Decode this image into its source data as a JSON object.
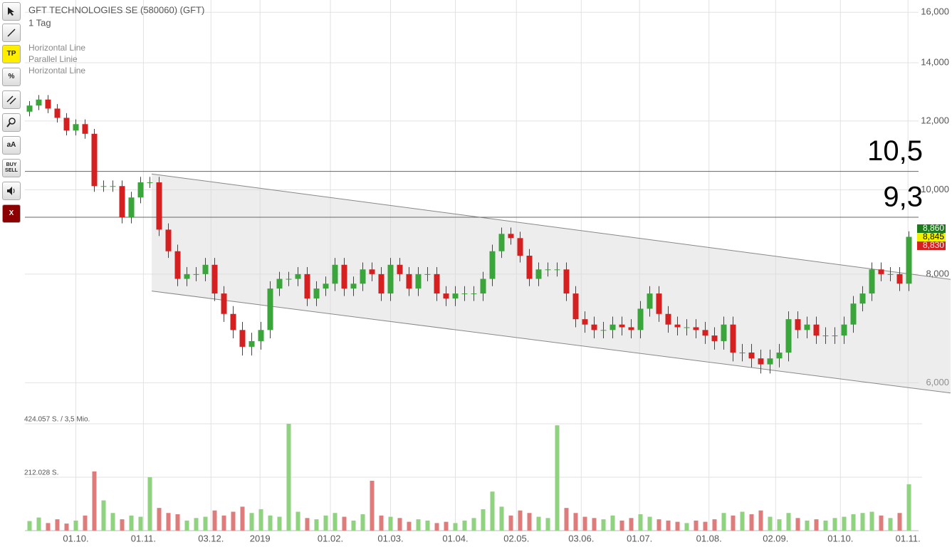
{
  "toolbar": {
    "buttons": [
      "TP",
      "%",
      "aA",
      "BUY",
      "SELL",
      "X"
    ]
  },
  "chart_data": {
    "type": "candlestick",
    "title": "GFT TECHNOLOGIES SE (580060) (GFT)",
    "subtitle": "1 Tag",
    "drawings": [
      "Horizontal Line",
      "Parallel Linie",
      "Horizontal Line"
    ],
    "log_scale": true,
    "grid": true,
    "up_color": "#3aa53a",
    "down_color": "#d42020",
    "xlim": [
      0,
      100
    ],
    "xticks": [
      {
        "value": 5.5,
        "label": "01.10."
      },
      {
        "value": 12.8,
        "label": "01.11."
      },
      {
        "value": 20.1,
        "label": "03.12."
      },
      {
        "value": 25.4,
        "label": "2019"
      },
      {
        "value": 33.0,
        "label": "01.02."
      },
      {
        "value": 39.5,
        "label": "01.03."
      },
      {
        "value": 46.5,
        "label": "01.04."
      },
      {
        "value": 53.1,
        "label": "02.05."
      },
      {
        "value": 60.1,
        "label": "03.06."
      },
      {
        "value": 66.4,
        "label": "01.07."
      },
      {
        "value": 73.9,
        "label": "01.08."
      },
      {
        "value": 81.1,
        "label": "02.09."
      },
      {
        "value": 88.1,
        "label": "01.10."
      },
      {
        "value": 95.4,
        "label": "01.11."
      }
    ],
    "ylim": [
      5750,
      16530
    ],
    "yticks": [
      {
        "value": 16000,
        "label": "16,000"
      },
      {
        "value": 14000,
        "label": "14,000"
      },
      {
        "value": 12000,
        "label": "12,000"
      },
      {
        "value": 10000,
        "label": "10,000"
      },
      {
        "value": 8000,
        "label": "8,000"
      },
      {
        "value": 6000,
        "label": "6,000"
      }
    ],
    "open": [
      12300,
      12500,
      12700,
      12400,
      12100,
      11700,
      11900,
      11600,
      10100,
      10100,
      10100,
      9300,
      9800,
      10200,
      10200,
      9000,
      8500,
      7900,
      8000,
      8000,
      8200,
      7600,
      7200,
      6900,
      6600,
      6700,
      6900,
      7700,
      7900,
      7900,
      8000,
      7500,
      7700,
      7800,
      8200,
      7700,
      7800,
      8100,
      8000,
      7600,
      8200,
      8000,
      7700,
      8000,
      8000,
      7600,
      7500,
      7600,
      7600,
      7600,
      7900,
      8500,
      8900,
      8800,
      8400,
      7900,
      8100,
      8100,
      8100,
      7600,
      7100,
      7000,
      6900,
      6900,
      7000,
      6950,
      6900,
      7300,
      7600,
      7200,
      7000,
      6950,
      6950,
      6900,
      6800,
      6700,
      7000,
      6500,
      6500,
      6400,
      6300,
      6400,
      6500,
      7100,
      6900,
      7000,
      6800,
      6800,
      6800,
      7000,
      7400,
      7600,
      8100,
      8000,
      8000,
      7800
    ],
    "high": [
      12650,
      12850,
      12850,
      12550,
      12250,
      12050,
      12050,
      11750,
      10250,
      10250,
      10250,
      9950,
      10350,
      10350,
      10350,
      9150,
      8650,
      8150,
      8150,
      8350,
      8350,
      7750,
      7350,
      7050,
      6850,
      7050,
      7850,
      8050,
      8050,
      8150,
      8150,
      7850,
      7950,
      8350,
      8350,
      7950,
      8250,
      8250,
      8150,
      8350,
      8350,
      8150,
      8150,
      8150,
      8150,
      7750,
      7750,
      7750,
      7750,
      8050,
      8650,
      9050,
      9050,
      8950,
      8550,
      8250,
      8250,
      8250,
      8250,
      7750,
      7250,
      7150,
      7050,
      7150,
      7150,
      7100,
      7450,
      7750,
      7750,
      7350,
      7150,
      7100,
      7100,
      7050,
      6950,
      7150,
      7150,
      6650,
      6650,
      6550,
      6550,
      6650,
      7250,
      7250,
      7150,
      7150,
      6950,
      6950,
      7150,
      7550,
      7750,
      8250,
      8250,
      8150,
      8150,
      8960
    ],
    "low": [
      12150,
      12350,
      12250,
      11950,
      11550,
      11550,
      11450,
      9950,
      9950,
      9950,
      9150,
      9150,
      9650,
      10050,
      8850,
      8350,
      7750,
      7750,
      7850,
      7850,
      7450,
      7050,
      6750,
      6450,
      6450,
      6550,
      6750,
      7550,
      7750,
      7750,
      7350,
      7350,
      7550,
      7650,
      7550,
      7550,
      7650,
      7850,
      7450,
      7450,
      7850,
      7550,
      7550,
      7850,
      7450,
      7350,
      7350,
      7450,
      7450,
      7450,
      7750,
      8350,
      8650,
      8250,
      7750,
      7750,
      7950,
      7950,
      7450,
      6950,
      6850,
      6750,
      6750,
      6750,
      6800,
      6750,
      6750,
      7150,
      7050,
      6850,
      6800,
      6800,
      6750,
      6650,
      6550,
      6550,
      6350,
      6350,
      6250,
      6150,
      6150,
      6250,
      6350,
      6750,
      6750,
      6650,
      6650,
      6650,
      6650,
      6850,
      7250,
      7450,
      7850,
      7850,
      7650,
      7650
    ],
    "close": [
      12500,
      12700,
      12400,
      12100,
      11700,
      11900,
      11600,
      10100,
      10100,
      10100,
      9300,
      9800,
      10200,
      10200,
      9000,
      8500,
      7900,
      8000,
      8000,
      8200,
      7600,
      7200,
      6900,
      6600,
      6700,
      6900,
      7700,
      7900,
      7900,
      8000,
      7500,
      7700,
      7800,
      8200,
      7700,
      7800,
      8100,
      8000,
      7600,
      8200,
      8000,
      7700,
      8000,
      8000,
      7600,
      7500,
      7600,
      7600,
      7600,
      7900,
      8500,
      8900,
      8800,
      8400,
      7900,
      8100,
      8100,
      8100,
      7600,
      7100,
      7000,
      6900,
      6900,
      7000,
      6950,
      6900,
      7300,
      7600,
      7200,
      7000,
      6950,
      6950,
      6900,
      6800,
      6700,
      7000,
      6500,
      6500,
      6400,
      6300,
      6400,
      6500,
      7100,
      6900,
      7000,
      6800,
      6800,
      6800,
      7000,
      7400,
      7600,
      8100,
      8000,
      8000,
      7800,
      8830
    ],
    "horizontal_lines": [
      {
        "value": 10500,
        "label": "10,5"
      },
      {
        "value": 9300,
        "label": "9,3"
      }
    ],
    "channel": {
      "upper": [
        [
          13.7,
          10430
        ],
        [
          100,
          7890
        ]
      ],
      "lower": [
        [
          13.7,
          7650
        ],
        [
          100,
          5840
        ]
      ]
    },
    "price_labels": [
      {
        "value": 8860,
        "label": "8,860",
        "color": "#1d7a1d"
      },
      {
        "value": 8845,
        "label": "8,845",
        "color": "#f2f200"
      },
      {
        "value": 8830,
        "label": "8,830",
        "color": "#d42020"
      }
    ],
    "volume": {
      "ylim": [
        0,
        424057
      ],
      "yticks": [
        {
          "value": 424057,
          "label": "424.057 S. / 3,5 Mio."
        },
        {
          "value": 212028,
          "label": "212.028 S."
        }
      ],
      "values": [
        38000,
        52000,
        30000,
        45000,
        28000,
        40000,
        60000,
        235000,
        120000,
        70000,
        45000,
        60000,
        55000,
        212000,
        90000,
        70000,
        65000,
        40000,
        50000,
        55000,
        80000,
        60000,
        75000,
        95000,
        70000,
        85000,
        60000,
        55000,
        424057,
        75000,
        50000,
        45000,
        60000,
        70000,
        55000,
        40000,
        65000,
        198000,
        60000,
        55000,
        50000,
        35000,
        45000,
        40000,
        30000,
        35000,
        30000,
        40000,
        50000,
        85000,
        155000,
        95000,
        60000,
        80000,
        70000,
        55000,
        50000,
        418000,
        90000,
        70000,
        55000,
        50000,
        45000,
        60000,
        40000,
        50000,
        65000,
        55000,
        45000,
        40000,
        35000,
        30000,
        40000,
        35000,
        45000,
        70000,
        60000,
        75000,
        65000,
        80000,
        55000,
        45000,
        70000,
        50000,
        40000,
        45000,
        40000,
        50000,
        55000,
        65000,
        70000,
        75000,
        60000,
        50000,
        70000,
        184000
      ]
    }
  }
}
